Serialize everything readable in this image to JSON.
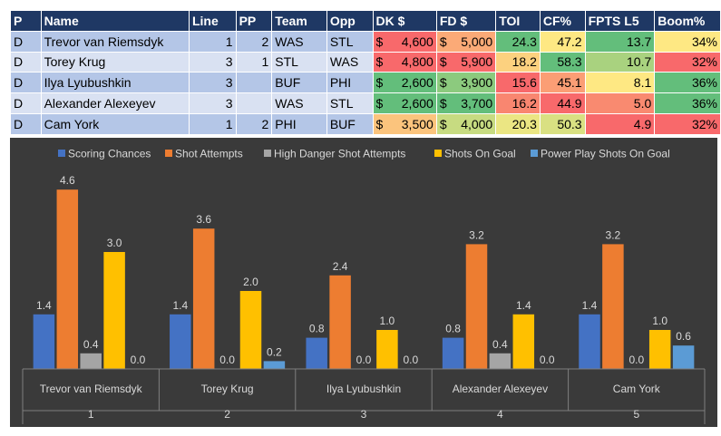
{
  "table": {
    "headers": [
      "P",
      "Name",
      "Line",
      "PP",
      "Team",
      "Opp",
      "DK $",
      "FD $",
      "TOI",
      "CF%",
      "FPTS L5",
      "Boom%"
    ],
    "rows": [
      {
        "pos": "D",
        "name": "Trevor van Riemsdyk",
        "line": "1",
        "pp": "2",
        "team": "WAS",
        "opp": "STL",
        "dk": "4,600",
        "fd": "5,000",
        "toi": "24.3",
        "cf": "47.2",
        "fpts": "13.7",
        "boom": "34%"
      },
      {
        "pos": "D",
        "name": "Torey Krug",
        "line": "3",
        "pp": "1",
        "team": "STL",
        "opp": "WAS",
        "dk": "4,800",
        "fd": "5,900",
        "toi": "18.2",
        "cf": "58.3",
        "fpts": "10.7",
        "boom": "32%"
      },
      {
        "pos": "D",
        "name": "Ilya Lyubushkin",
        "line": "3",
        "pp": "",
        "team": "BUF",
        "opp": "PHI",
        "dk": "2,600",
        "fd": "3,900",
        "toi": "15.6",
        "cf": "45.1",
        "fpts": "8.1",
        "boom": "36%"
      },
      {
        "pos": "D",
        "name": "Alexander Alexeyev",
        "line": "3",
        "pp": "",
        "team": "WAS",
        "opp": "STL",
        "dk": "2,600",
        "fd": "3,700",
        "toi": "16.2",
        "cf": "44.9",
        "fpts": "5.0",
        "boom": "36%"
      },
      {
        "pos": "D",
        "name": "Cam York",
        "line": "1",
        "pp": "2",
        "team": "PHI",
        "opp": "BUF",
        "dk": "3,500",
        "fd": "4,000",
        "toi": "20.3",
        "cf": "50.3",
        "fpts": "4.9",
        "boom": "32%"
      }
    ],
    "currency_symbol": "$",
    "cell_colors": {
      "dk": [
        "#f8696b",
        "#f8696b",
        "#63be7b",
        "#63be7b",
        "#fbc47d"
      ],
      "fd": [
        "#fbaa77",
        "#f8696b",
        "#8cca7e",
        "#63be7b",
        "#c7db81"
      ],
      "toi": [
        "#63be7b",
        "#fcd17f",
        "#f8696b",
        "#f98670",
        "#ebe683"
      ],
      "cf": [
        "#fee883",
        "#63be7b",
        "#fb9e75",
        "#f8696b",
        "#d9e082"
      ],
      "fpts": [
        "#63be7b",
        "#a9d27f",
        "#fee883",
        "#f98a70",
        "#f8696b"
      ],
      "boom": [
        "#fee883",
        "#f8696b",
        "#63be7b",
        "#63be7b",
        "#f8696b"
      ]
    }
  },
  "chart_data": {
    "type": "bar",
    "title": "",
    "categories": [
      "Trevor van Riemsdyk",
      "Torey Krug",
      "Ilya Lyubushkin",
      "Alexander Alexeyev",
      "Cam York"
    ],
    "group_labels": [
      "1",
      "2",
      "3",
      "4",
      "5"
    ],
    "ylim": [
      0,
      5
    ],
    "grid": false,
    "legend_position": "top",
    "series": [
      {
        "name": "Scoring Chances",
        "color": "#4472c4",
        "values": [
          1.4,
          1.4,
          0.8,
          0.8,
          1.4
        ]
      },
      {
        "name": "Shot Attempts",
        "color": "#ed7d31",
        "values": [
          4.6,
          3.6,
          2.4,
          3.2,
          3.2
        ]
      },
      {
        "name": "High Danger Shot Attempts",
        "color": "#a5a5a5",
        "values": [
          0.4,
          0.0,
          0.0,
          0.4,
          0.0
        ]
      },
      {
        "name": "Shots On Goal",
        "color": "#ffc000",
        "values": [
          3.0,
          2.0,
          1.0,
          1.4,
          1.0
        ]
      },
      {
        "name": "Power Play Shots On Goal",
        "color": "#5b9bd5",
        "values": [
          0.0,
          0.2,
          0.0,
          0.0,
          0.6
        ]
      }
    ]
  }
}
